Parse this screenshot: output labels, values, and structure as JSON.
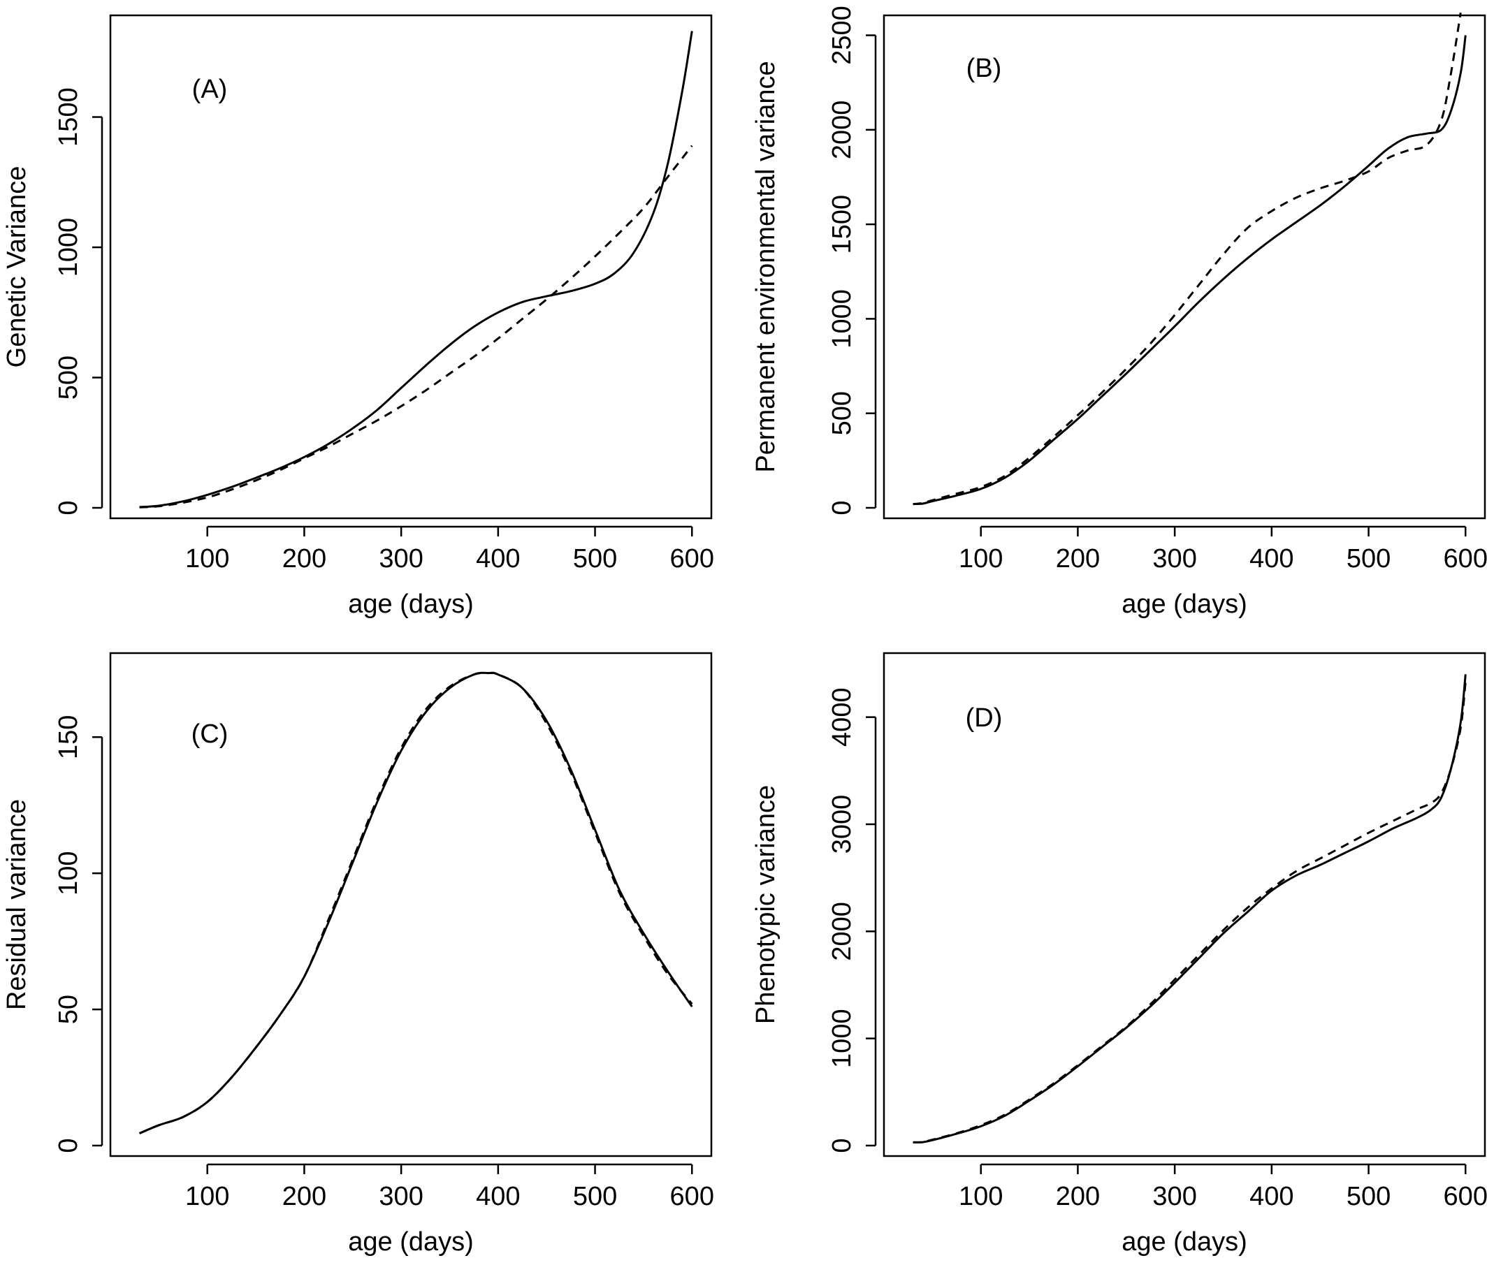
{
  "chart_data": [
    {
      "type": "line",
      "panel_tag": "(A)",
      "xlabel": "age (days)",
      "ylabel": "Genetic Variance",
      "xlim": [
        30,
        600
      ],
      "ylim": [
        0,
        1850
      ],
      "xticks": [
        100,
        200,
        300,
        400,
        500,
        600
      ],
      "yticks": [
        0,
        500,
        1000,
        1500
      ],
      "series": [
        {
          "style": "solid",
          "x": [
            30,
            50,
            75,
            100,
            125,
            150,
            175,
            200,
            225,
            250,
            275,
            300,
            325,
            350,
            375,
            400,
            425,
            450,
            475,
            500,
            520,
            540,
            560,
            575,
            590,
            600
          ],
          "y": [
            3,
            8,
            25,
            50,
            80,
            115,
            152,
            195,
            245,
            305,
            375,
            460,
            545,
            625,
            695,
            750,
            790,
            812,
            832,
            860,
            900,
            980,
            1130,
            1320,
            1600,
            1830
          ]
        },
        {
          "style": "dashed",
          "x": [
            30,
            50,
            75,
            100,
            125,
            150,
            175,
            200,
            225,
            250,
            275,
            300,
            325,
            350,
            375,
            400,
            425,
            450,
            475,
            500,
            525,
            550,
            575,
            600
          ],
          "y": [
            2,
            6,
            20,
            40,
            70,
            105,
            145,
            190,
            235,
            285,
            335,
            390,
            450,
            515,
            580,
            650,
            725,
            800,
            880,
            965,
            1055,
            1150,
            1270,
            1390
          ]
        }
      ]
    },
    {
      "type": "line",
      "panel_tag": "(B)",
      "xlabel": "age (days)",
      "ylabel": "Permanent environmental variance",
      "xlim": [
        30,
        600
      ],
      "ylim": [
        0,
        2550
      ],
      "xticks": [
        100,
        200,
        300,
        400,
        500,
        600
      ],
      "yticks": [
        0,
        500,
        1000,
        1500,
        2000,
        2500
      ],
      "series": [
        {
          "style": "solid",
          "x": [
            30,
            40,
            50,
            75,
            100,
            125,
            150,
            175,
            200,
            225,
            250,
            275,
            300,
            325,
            350,
            375,
            400,
            425,
            450,
            475,
            500,
            520,
            540,
            560,
            575,
            585,
            595,
            600
          ],
          "y": [
            20,
            22,
            35,
            65,
            100,
            160,
            250,
            360,
            470,
            590,
            710,
            835,
            960,
            1090,
            1210,
            1320,
            1420,
            1510,
            1600,
            1700,
            1810,
            1900,
            1960,
            1980,
            2000,
            2100,
            2300,
            2500
          ]
        },
        {
          "style": "dashed",
          "x": [
            30,
            40,
            50,
            75,
            100,
            125,
            150,
            175,
            200,
            225,
            250,
            275,
            300,
            325,
            350,
            375,
            400,
            425,
            450,
            475,
            500,
            520,
            540,
            560,
            575,
            585,
            595
          ],
          "y": [
            20,
            25,
            40,
            75,
            110,
            170,
            265,
            375,
            490,
            610,
            735,
            870,
            1020,
            1180,
            1340,
            1480,
            1570,
            1640,
            1690,
            1730,
            1780,
            1850,
            1890,
            1920,
            2050,
            2300,
            2620
          ]
        }
      ]
    },
    {
      "type": "line",
      "panel_tag": "(C)",
      "xlabel": "age (days)",
      "ylabel": "Residual variance",
      "xlim": [
        30,
        600
      ],
      "ylim": [
        0,
        177
      ],
      "xticks": [
        100,
        200,
        300,
        400,
        500,
        600
      ],
      "yticks": [
        0,
        50,
        100,
        150
      ],
      "series": [
        {
          "style": "solid",
          "x": [
            30,
            50,
            75,
            100,
            125,
            150,
            175,
            200,
            225,
            250,
            275,
            300,
            325,
            350,
            375,
            390,
            400,
            425,
            450,
            475,
            500,
            525,
            550,
            575,
            600
          ],
          "y": [
            4.5,
            7.5,
            10.5,
            16,
            25,
            36,
            48,
            62,
            82,
            104,
            126,
            145,
            159,
            168,
            173,
            173.5,
            173,
            168,
            156,
            138,
            116,
            94,
            78,
            64,
            51
          ]
        },
        {
          "style": "dashed",
          "x": [
            30,
            50,
            75,
            100,
            125,
            150,
            175,
            200,
            225,
            250,
            275,
            300,
            325,
            350,
            375,
            390,
            400,
            425,
            450,
            475,
            500,
            525,
            550,
            575,
            600
          ],
          "y": [
            4.5,
            7.5,
            10.5,
            16,
            25,
            36,
            48,
            62,
            83,
            105,
            127,
            146,
            160,
            168.5,
            173,
            173.5,
            173,
            168,
            155,
            137,
            115,
            93,
            77,
            63,
            52
          ]
        }
      ]
    },
    {
      "type": "line",
      "panel_tag": "(D)",
      "xlabel": "age (days)",
      "ylabel": "Phenotypic variance",
      "xlim": [
        30,
        600
      ],
      "ylim": [
        0,
        4500
      ],
      "xticks": [
        100,
        200,
        300,
        400,
        500,
        600
      ],
      "yticks": [
        0,
        1000,
        2000,
        3000,
        4000
      ],
      "series": [
        {
          "style": "solid",
          "x": [
            30,
            40,
            50,
            75,
            100,
            125,
            150,
            175,
            200,
            225,
            250,
            275,
            300,
            325,
            350,
            375,
            400,
            425,
            450,
            475,
            500,
            525,
            550,
            565,
            575,
            585,
            595,
            600
          ],
          "y": [
            30,
            32,
            50,
            110,
            180,
            280,
            420,
            570,
            740,
            920,
            1100,
            1300,
            1520,
            1750,
            1980,
            2180,
            2380,
            2520,
            2620,
            2730,
            2840,
            2960,
            3060,
            3140,
            3250,
            3520,
            3950,
            4400
          ]
        },
        {
          "style": "dashed",
          "x": [
            30,
            40,
            50,
            75,
            100,
            125,
            150,
            175,
            200,
            225,
            250,
            275,
            300,
            325,
            350,
            375,
            400,
            425,
            450,
            475,
            500,
            525,
            550,
            565,
            575,
            585,
            595,
            600
          ],
          "y": [
            30,
            33,
            55,
            115,
            190,
            290,
            430,
            580,
            750,
            930,
            1110,
            1320,
            1550,
            1780,
            2010,
            2220,
            2400,
            2560,
            2680,
            2800,
            2920,
            3030,
            3140,
            3200,
            3290,
            3520,
            3900,
            4330
          ]
        }
      ]
    }
  ]
}
